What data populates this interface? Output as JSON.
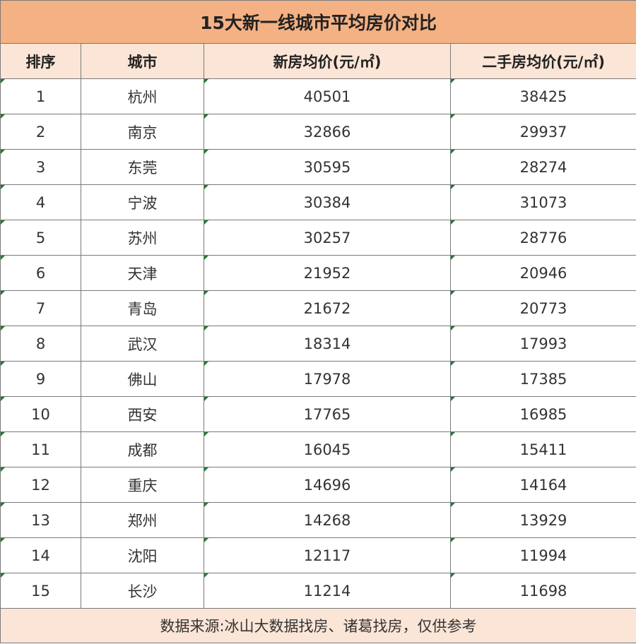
{
  "table": {
    "title": "15大新一线城市平均房价对比",
    "headers": [
      "排序",
      "城市",
      "新房均价(元/㎡)",
      "二手房均价(元/㎡)"
    ],
    "rows": [
      {
        "rank": "1",
        "city": "杭州",
        "new_price": "40501",
        "used_price": "38425"
      },
      {
        "rank": "2",
        "city": "南京",
        "new_price": "32866",
        "used_price": "29937"
      },
      {
        "rank": "3",
        "city": "东莞",
        "new_price": "30595",
        "used_price": "28274"
      },
      {
        "rank": "4",
        "city": "宁波",
        "new_price": "30384",
        "used_price": "31073"
      },
      {
        "rank": "5",
        "city": "苏州",
        "new_price": "30257",
        "used_price": "28776"
      },
      {
        "rank": "6",
        "city": "天津",
        "new_price": "21952",
        "used_price": "20946"
      },
      {
        "rank": "7",
        "city": "青岛",
        "new_price": "21672",
        "used_price": "20773"
      },
      {
        "rank": "8",
        "city": "武汉",
        "new_price": "18314",
        "used_price": "17993"
      },
      {
        "rank": "9",
        "city": "佛山",
        "new_price": "17978",
        "used_price": "17385"
      },
      {
        "rank": "10",
        "city": "西安",
        "new_price": "17765",
        "used_price": "16985"
      },
      {
        "rank": "11",
        "city": "成都",
        "new_price": "16045",
        "used_price": "15411"
      },
      {
        "rank": "12",
        "city": "重庆",
        "new_price": "14696",
        "used_price": "14164"
      },
      {
        "rank": "13",
        "city": "郑州",
        "new_price": "14268",
        "used_price": "13929"
      },
      {
        "rank": "14",
        "city": "沈阳",
        "new_price": "12117",
        "used_price": "11994"
      },
      {
        "rank": "15",
        "city": "长沙",
        "new_price": "11214",
        "used_price": "11698"
      }
    ],
    "footer": "数据来源:冰山大数据找房、诸葛找房，仅供参考"
  },
  "colors": {
    "title_bg": "#f4b183",
    "header_bg": "#fbe5d6",
    "footer_bg": "#fbe5d6",
    "grid_line": "#7a7a7a",
    "flag_marker": "#1e7b34"
  }
}
